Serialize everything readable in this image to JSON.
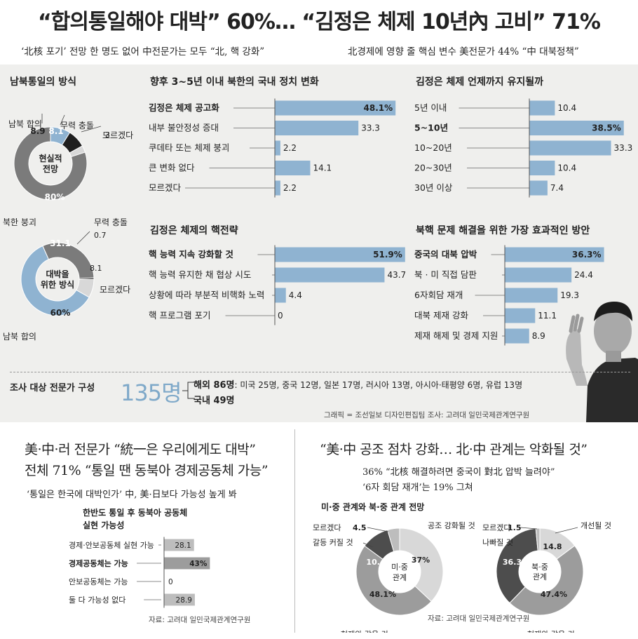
{
  "headline": "“합의통일해야 대박” 60%… “김정은 체제 10년內 고비” 71%",
  "subhead_left": "‘北核 포기’ 전망 한 명도 없어  中전문가는 모두 “北, 핵 강화”",
  "subhead_right": "北경제에 영향 줄 핵심 변수  美전문가 44% “中 대북정책”",
  "survey": {
    "label": "조사 대상 전문가 구성",
    "total": "135명",
    "overseas": "해외 86명",
    "overseas_detail": ": 미국 25명, 중국 12명, 일본 17명, 러시아 13명, 아시아·태평양 6명, 유럽 13명",
    "domestic": "국내 49명",
    "credit": "그래픽 = 조선일보 디자인편집팀   조사: 고려대 일민국제관계연구원"
  },
  "bottom_left": {
    "headline1": "美·中·러 전문가 “統一은 우리에게도 대박”",
    "headline2": "전체 71% “통일 땐 동북아 경제공동체 가능”",
    "sub": "‘통일은 한국에 대박인가’ 中, 美·日보다 가능성 높게 봐",
    "source": "자료: 고려대 일민국제관계연구원"
  },
  "bottom_right": {
    "headline": "“美·中 공조 점차 강화… 北·中 관계는 악화될 것”",
    "sub1": "36% “北核 해결하려면 중국이 對北 압박 늘려야”",
    "sub2": "‘6자 회담 재개’는 19% 그쳐",
    "source": "자료: 고려대 일민국제관계연구원"
  },
  "colors": {
    "blue": "#8fb3d1",
    "dark": "#1f1f1f",
    "gray": "#7b7b7b",
    "light": "#d8d8d8",
    "panel": "#efefed",
    "accent": "#7fa9c9"
  },
  "chart_data": [
    {
      "id": "reunification_method",
      "type": "pie",
      "title": "남북통일의 방식",
      "center_label": "현실적 전망",
      "slices": [
        {
          "label": "북한 붕괴",
          "value": 80.0
        },
        {
          "label": "남북 합의",
          "value": 8.9
        },
        {
          "label": "무력 충돌",
          "value": 8.1
        },
        {
          "label": "모르겠다",
          "value": 3.0
        }
      ]
    },
    {
      "id": "jackpot_method",
      "type": "pie",
      "center_label": "대박을 위한 방식",
      "slices": [
        {
          "label": "남북 합의",
          "value": 60.0
        },
        {
          "label": "북한 붕괴",
          "value": 31.1
        },
        {
          "label": "무력 충돌",
          "value": 0.7
        },
        {
          "label": "모르겠다",
          "value": 8.1
        }
      ]
    },
    {
      "id": "domestic_politics",
      "type": "bar",
      "title": "향후 3~5년 이내 북한의 국내 정치 변화",
      "categories": [
        "김정은 체제 공고화",
        "내부 불안정성 증대",
        "쿠데타 또는 체제 붕괴",
        "큰 변화 없다",
        "모르겠다"
      ],
      "values": [
        48.1,
        33.3,
        2.2,
        14.1,
        2.2
      ],
      "highlight": 0
    },
    {
      "id": "regime_duration",
      "type": "bar",
      "title": "김정은 체제 언제까지 유지될까",
      "categories": [
        "5년 이내",
        "5~10년",
        "10~20년",
        "20~30년",
        "30년 이상"
      ],
      "values": [
        10.4,
        38.5,
        33.3,
        10.4,
        7.4
      ],
      "highlight": 1
    },
    {
      "id": "nuclear_strategy",
      "type": "bar",
      "title": "김정은 체제의 핵전략",
      "categories": [
        "핵 능력 지속 강화할 것",
        "핵 능력 유지한 채 협상 시도",
        "상황에 따라 부분적 비핵화 노력",
        "핵 프로그램 포기"
      ],
      "values": [
        51.9,
        43.7,
        4.4,
        0
      ],
      "highlight": 0
    },
    {
      "id": "effective_solution",
      "type": "bar",
      "title": "북핵 문제 해결을 위한 가장 효과적인 방안",
      "categories": [
        "중국의 대북 압박",
        "북 · 미 직접 담판",
        "6자회담 재개",
        "대북 제재 강화",
        "제재 해제 및 경제 지원"
      ],
      "values": [
        36.3,
        24.4,
        19.3,
        11.1,
        8.9
      ],
      "highlight": 0
    },
    {
      "id": "economic_community",
      "type": "bar",
      "title": "한반도 통일 후 동북아 공동체 실현 가능성",
      "categories": [
        "경제·안보공동체 실현 가능",
        "경제공동체는 가능",
        "안보공동체는 가능",
        "둘 다 가능성 없다"
      ],
      "values": [
        28.1,
        43,
        0,
        28.9
      ],
      "highlight": 1
    },
    {
      "id": "us_china_relations",
      "type": "pie",
      "title": "미·중 관계와 북·중 관계 전망",
      "center_label": "미·중 관계",
      "slices": [
        {
          "label": "공조 강화될 것",
          "value": 37
        },
        {
          "label": "현재와 같을 것",
          "value": 48.1
        },
        {
          "label": "갈등 커질 것",
          "value": 10.4
        },
        {
          "label": "모르겠다",
          "value": 4.5
        }
      ]
    },
    {
      "id": "nk_china_relations",
      "type": "pie",
      "center_label": "북·중 관계",
      "slices": [
        {
          "label": "개선될 것",
          "value": 14.8
        },
        {
          "label": "현재와 같을 것",
          "value": 47.4
        },
        {
          "label": "나빠질 것",
          "value": 36.3
        },
        {
          "label": "모르겠다",
          "value": 1.5
        }
      ]
    }
  ]
}
